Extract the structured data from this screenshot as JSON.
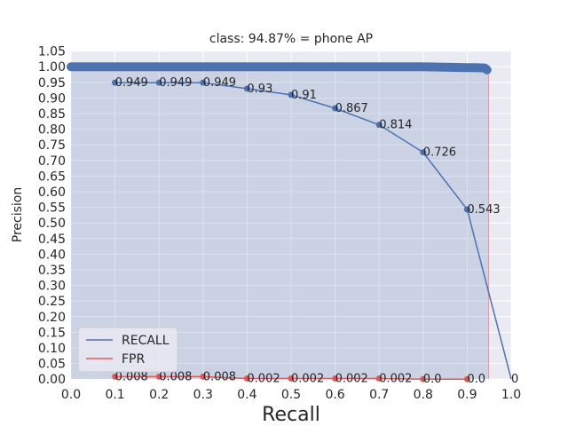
{
  "chart_data": {
    "type": "line",
    "title": "class: 94.87% = phone AP",
    "xlabel": "Recall",
    "ylabel": "Precision",
    "xlim": [
      0.0,
      1.0
    ],
    "ylim": [
      0.0,
      1.05
    ],
    "xticks": [
      "0.0",
      "0.1",
      "0.2",
      "0.3",
      "0.4",
      "0.5",
      "0.6",
      "0.7",
      "0.8",
      "0.9",
      "1.0"
    ],
    "yticks": [
      "0.00",
      "0.05",
      "0.10",
      "0.15",
      "0.20",
      "0.25",
      "0.30",
      "0.35",
      "0.40",
      "0.45",
      "0.50",
      "0.55",
      "0.60",
      "0.65",
      "0.70",
      "0.75",
      "0.80",
      "0.85",
      "0.90",
      "0.95",
      "1.00",
      "1.05"
    ],
    "grid": true,
    "legend_position": "lower-left",
    "ap_area": {
      "recall_max": 0.9487,
      "precision": 1.0
    },
    "pr_curve": {
      "x": [
        0.0,
        0.1,
        0.2,
        0.3,
        0.4,
        0.5,
        0.6,
        0.7,
        0.8,
        0.9,
        0.92,
        0.94,
        0.945
      ],
      "y": [
        1.0,
        1.0,
        1.0,
        1.0,
        1.0,
        1.0,
        1.0,
        1.0,
        1.0,
        0.997,
        0.997,
        0.996,
        0.99
      ]
    },
    "series": [
      {
        "name": "RECALL",
        "color": "#4c72b0",
        "x": [
          0.1,
          0.2,
          0.3,
          0.4,
          0.5,
          0.6,
          0.7,
          0.8,
          0.9,
          1.0
        ],
        "y": [
          0.949,
          0.949,
          0.949,
          0.93,
          0.91,
          0.867,
          0.814,
          0.726,
          0.543,
          0
        ],
        "labels": [
          "0.949",
          "0.949",
          "0.949",
          "0.93",
          "0.91",
          "0.867",
          "0.814",
          "0.726",
          "0.543",
          "0"
        ]
      },
      {
        "name": "FPR",
        "color": "#dd5b5b",
        "x": [
          0.1,
          0.2,
          0.3,
          0.4,
          0.5,
          0.6,
          0.7,
          0.8,
          0.9
        ],
        "y": [
          0.008,
          0.008,
          0.008,
          0.002,
          0.002,
          0.002,
          0.002,
          0.0,
          0.0
        ],
        "labels": [
          "0.008",
          "0.008",
          "0.008",
          "0.002",
          "0.002",
          "0.002",
          "0.002",
          "0.0",
          "0.0"
        ]
      }
    ]
  }
}
